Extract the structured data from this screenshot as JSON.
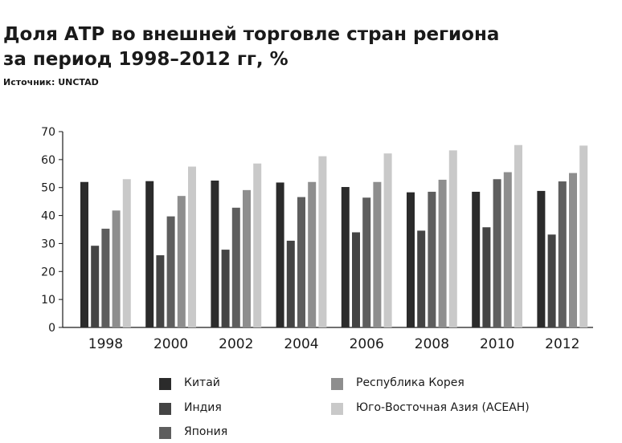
{
  "title_line1": "Доля АТР во внешней торговле стран региона",
  "title_line2": "за период 1998–2012 гг, %",
  "source": "Источник: UNCTAD",
  "chart_data": {
    "type": "bar",
    "title": "Доля АТР во внешней торговле стран региона за период 1998–2012 гг, %",
    "xlabel": "",
    "ylabel": "",
    "ylim": [
      0,
      70
    ],
    "yticks": [
      0,
      10,
      20,
      30,
      40,
      50,
      60,
      70
    ],
    "grid": false,
    "legend_position": "bottom",
    "categories": [
      "1998",
      "2000",
      "2002",
      "2004",
      "2006",
      "2008",
      "2010",
      "2012"
    ],
    "series": [
      {
        "name": "Китай",
        "color": "#2b2b2b",
        "values": [
          52,
          52.3,
          52.5,
          51.8,
          50.2,
          48.3,
          48.5,
          48.8
        ]
      },
      {
        "name": "Индия",
        "color": "#444444",
        "values": [
          29.2,
          25.8,
          27.8,
          31,
          34,
          34.6,
          35.8,
          33.2
        ]
      },
      {
        "name": "Япония",
        "color": "#5e5e5e",
        "values": [
          35.3,
          39.7,
          42.8,
          46.6,
          46.4,
          48.5,
          53,
          52.2
        ]
      },
      {
        "name": "Республика Корея",
        "color": "#8e8e8e",
        "values": [
          41.8,
          47,
          49.1,
          52,
          52,
          52.8,
          55.5,
          55.2
        ]
      },
      {
        "name": "Юго-Восточная Азия (АСЕАН)",
        "color": "#c9c9c9",
        "values": [
          53,
          57.5,
          58.6,
          61.2,
          62.2,
          63.3,
          65.2,
          65
        ]
      }
    ]
  }
}
